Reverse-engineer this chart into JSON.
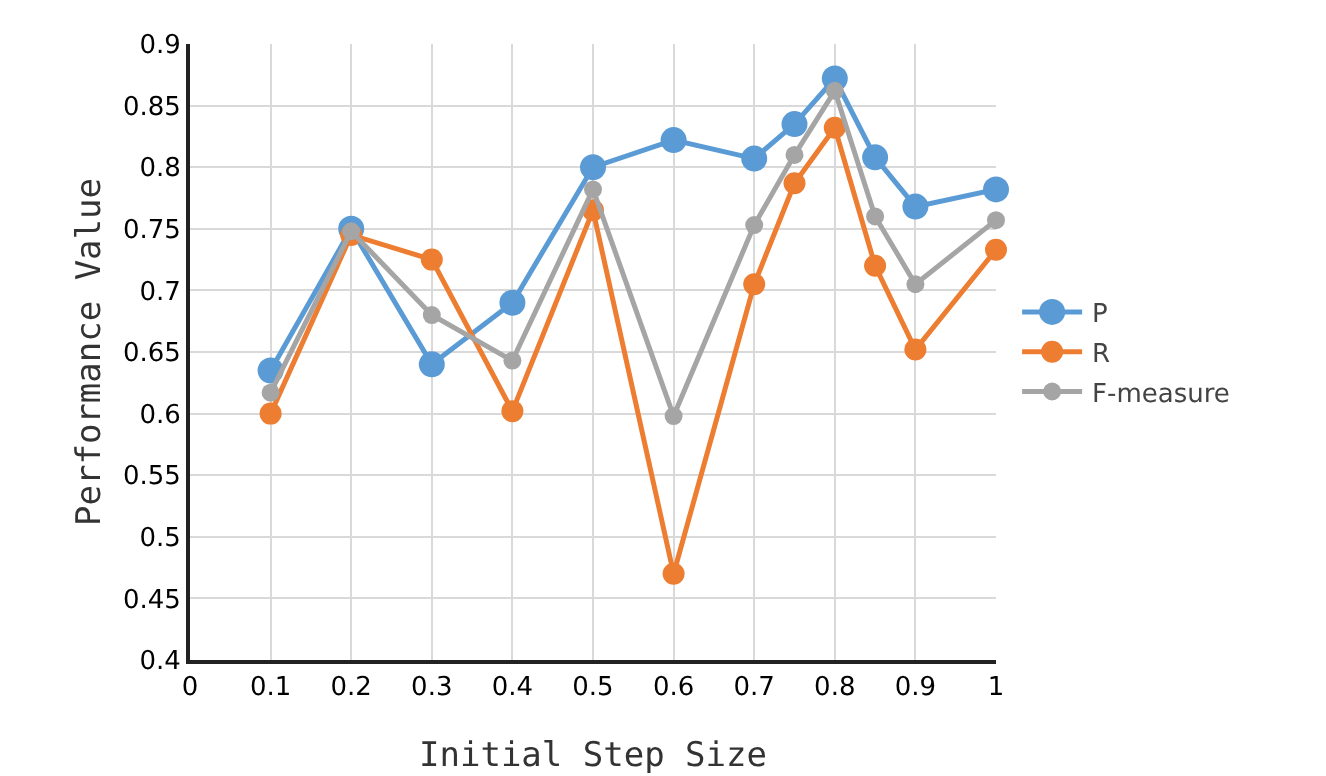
{
  "chart_data": {
    "type": "line",
    "xlabel": "Initial Step Size",
    "ylabel": "Performance Value",
    "x": [
      0.1,
      0.2,
      0.3,
      0.4,
      0.5,
      0.6,
      0.7,
      0.75,
      0.8,
      0.85,
      0.9,
      1
    ],
    "series": [
      {
        "name": "P",
        "color": "#5b9bd5",
        "values": [
          0.635,
          0.75,
          0.64,
          0.69,
          0.8,
          0.822,
          0.807,
          0.835,
          0.872,
          0.808,
          0.768,
          0.782
        ]
      },
      {
        "name": "R",
        "color": "#ed7d31",
        "values": [
          0.6,
          0.745,
          0.725,
          0.602,
          0.765,
          0.47,
          0.705,
          0.787,
          0.832,
          0.72,
          0.652,
          0.733
        ]
      },
      {
        "name": "F-measure",
        "color": "#a5a5a5",
        "values": [
          0.617,
          0.748,
          0.68,
          0.643,
          0.782,
          0.598,
          0.753,
          0.81,
          0.862,
          0.76,
          0.705,
          0.757
        ]
      }
    ],
    "xlim": [
      0,
      1
    ],
    "xticks": [
      0,
      0.1,
      0.2,
      0.3,
      0.4,
      0.5,
      0.6,
      0.7,
      0.8,
      0.9,
      1
    ],
    "ylim": [
      0.4,
      0.9
    ],
    "yticks": [
      0.4,
      0.45,
      0.5,
      0.55,
      0.6,
      0.65,
      0.7,
      0.75,
      0.8,
      0.85,
      0.9
    ],
    "grid": true,
    "legend": "right",
    "marker": "circle",
    "line_style": "solid"
  }
}
